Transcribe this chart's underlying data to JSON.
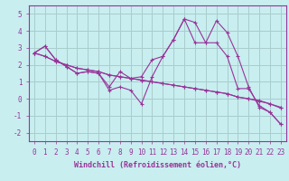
{
  "title": "",
  "xlabel": "Windchill (Refroidissement éolien,°C)",
  "background_color": "#c8eef0",
  "grid_color": "#aacccc",
  "line_color": "#993399",
  "xlim": [
    -0.5,
    23.5
  ],
  "ylim": [
    -2.5,
    5.5
  ],
  "yticks": [
    -2,
    -1,
    0,
    1,
    2,
    3,
    4,
    5
  ],
  "xticks": [
    0,
    1,
    2,
    3,
    4,
    5,
    6,
    7,
    8,
    9,
    10,
    11,
    12,
    13,
    14,
    15,
    16,
    17,
    18,
    19,
    20,
    21,
    22,
    23
  ],
  "series": [
    [
      2.7,
      3.1,
      2.3,
      1.9,
      1.5,
      1.6,
      1.5,
      0.7,
      1.6,
      1.2,
      1.3,
      2.3,
      2.5,
      3.5,
      4.7,
      4.5,
      3.3,
      4.6,
      3.9,
      2.5,
      0.7,
      -0.5,
      -0.8,
      -1.5
    ],
    [
      2.7,
      3.1,
      2.3,
      1.9,
      1.5,
      1.6,
      1.5,
      0.5,
      0.7,
      0.5,
      -0.3,
      1.3,
      2.5,
      3.5,
      4.7,
      3.3,
      3.3,
      3.3,
      2.5,
      0.6,
      0.6,
      -0.4,
      -0.8,
      -1.5
    ],
    [
      2.7,
      2.5,
      2.2,
      2.0,
      1.8,
      1.7,
      1.6,
      1.4,
      1.3,
      1.2,
      1.1,
      1.0,
      0.9,
      0.8,
      0.7,
      0.6,
      0.5,
      0.4,
      0.3,
      0.1,
      0.0,
      -0.1,
      -0.3,
      -0.5
    ],
    [
      2.7,
      2.5,
      2.2,
      2.0,
      1.8,
      1.7,
      1.6,
      1.4,
      1.3,
      1.2,
      1.1,
      1.0,
      0.9,
      0.8,
      0.7,
      0.6,
      0.5,
      0.4,
      0.3,
      0.1,
      0.0,
      -0.15,
      -0.3,
      -0.55
    ]
  ],
  "tick_fontsize": 5.5,
  "xlabel_fontsize": 6.0
}
